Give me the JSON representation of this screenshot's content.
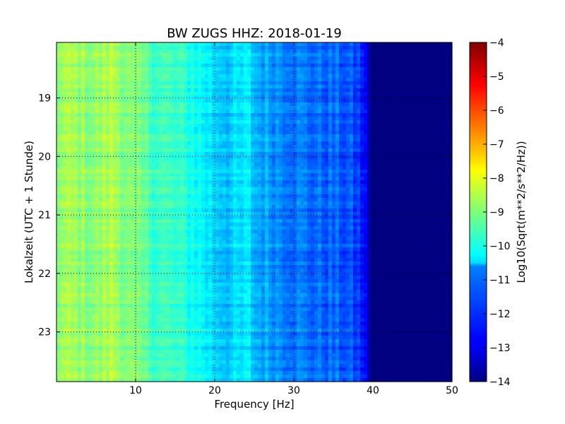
{
  "chart_data": {
    "type": "heatmap",
    "title": "BW ZUGS HHZ: 2018-01-19",
    "xlabel": "Frequency [Hz]",
    "ylabel": "Lokalzeit (UTC + 1 Stunde)",
    "xlim": [
      0,
      50
    ],
    "ylim": [
      18.05,
      23.85
    ],
    "xticks": [
      10,
      20,
      30,
      40,
      50
    ],
    "yticks": [
      19,
      20,
      21,
      22,
      23
    ],
    "grid": true,
    "colorbar": {
      "label": "Log10(Sqrt(m**2/s**2/Hz))",
      "range": [
        -14,
        -4
      ],
      "ticks": [
        -4,
        -5,
        -6,
        -7,
        -8,
        -9,
        -10,
        -11,
        -12,
        -13,
        -14
      ],
      "colormap": "jet"
    },
    "frequency_profile": {
      "frequencies_hz": [
        0,
        2,
        5,
        7,
        9,
        10,
        12,
        15,
        17,
        20,
        22,
        24.5,
        25,
        27,
        30,
        32,
        35,
        37,
        38.5,
        39.5,
        40,
        45,
        50
      ],
      "log10_amplitude": [
        -8.8,
        -8.7,
        -8.9,
        -8.5,
        -9.0,
        -9.2,
        -9.5,
        -9.8,
        -10.0,
        -10.6,
        -10.8,
        -10.5,
        -11.0,
        -11.2,
        -11.5,
        -11.7,
        -11.8,
        -12.0,
        -12.3,
        -13.5,
        -14.0,
        -14.0,
        -14.0
      ]
    }
  }
}
